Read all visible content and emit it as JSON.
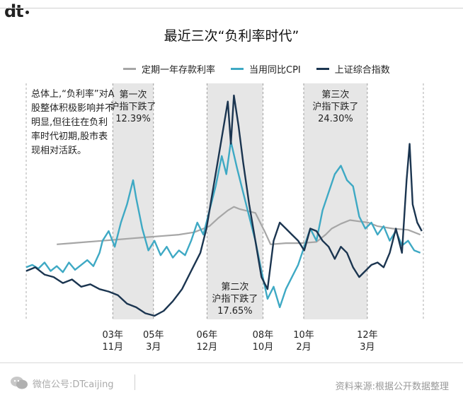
{
  "header": {
    "logo": "dt"
  },
  "title": "最近三次“负利率时代”",
  "note": "总体上,“负利率”对A股整体积极影响并不明显,但往往在负利率时代初期,股市表现相对活跃。",
  "footer": {
    "wechat": "微信公号:DTcaijing",
    "source": "资料来源:根据公开数据整理"
  },
  "colors": {
    "deposit": "#a6a6a6",
    "cpi": "#3ea9c4",
    "shindex": "#1b3550",
    "shade": "#e6e6e6"
  },
  "chart_data": {
    "type": "line",
    "title": "最近三次“负利率时代”",
    "x_range": [
      "2001-01",
      "2013-12"
    ],
    "legend_placement": "top",
    "legend": [
      "定期一年存款利率",
      "当用同比CPI",
      "上证综合指数"
    ],
    "tick_labels": [
      {
        "x": "2003-11",
        "year": "03年",
        "month": "11月"
      },
      {
        "x": "2005-03",
        "year": "05年",
        "month": "3月"
      },
      {
        "x": "2006-12",
        "year": "06年",
        "month": "12月"
      },
      {
        "x": "2008-10",
        "year": "08年",
        "month": "10月"
      },
      {
        "x": "2010-02",
        "year": "10年",
        "month": "2月"
      },
      {
        "x": "2012-03",
        "year": "12年",
        "month": "3月"
      }
    ],
    "periods": [
      {
        "start": "2003-11",
        "end": "2005-03",
        "label": [
          "第一次",
          "沪指下跌了",
          "12.39%"
        ],
        "decline_pct": 12.39
      },
      {
        "start": "2006-12",
        "end": "2008-10",
        "label": [
          "第二次",
          "沪指下跌了",
          "17.65%"
        ],
        "decline_pct": 17.65
      },
      {
        "start": "2010-02",
        "end": "2012-03",
        "label": [
          "第三次",
          "沪指下跌了",
          "24.30%"
        ],
        "decline_pct": 24.3
      }
    ],
    "series": [
      {
        "name": "定期一年存款利率",
        "x": [
          2002.0,
          2002.5,
          2003.0,
          2003.5,
          2004.0,
          2004.5,
          2005.0,
          2005.5,
          2006.0,
          2006.5,
          2007.0,
          2007.3,
          2007.6,
          2007.8,
          2008.0,
          2008.5,
          2008.8,
          2009.0,
          2009.5,
          2010.0,
          2010.5,
          2010.8,
          2011.0,
          2011.3,
          2011.6,
          2011.9,
          2012.2,
          2012.5,
          2013.0,
          2013.5,
          2013.9
        ],
        "y": [
          27,
          28,
          29,
          30,
          31,
          32,
          33,
          34,
          35,
          37,
          42,
          49,
          55,
          58,
          56,
          53,
          38,
          27,
          28,
          28,
          29,
          35,
          40,
          44,
          47,
          46,
          45,
          42,
          40,
          39,
          35
        ]
      },
      {
        "name": "当用同比CPI",
        "x": [
          2001.0,
          2001.2,
          2001.4,
          2001.6,
          2001.8,
          2002.0,
          2002.2,
          2002.4,
          2002.6,
          2002.8,
          2003.0,
          2003.2,
          2003.4,
          2003.5,
          2003.7,
          2003.9,
          2004.1,
          2004.3,
          2004.5,
          2004.6,
          2004.8,
          2005.0,
          2005.2,
          2005.4,
          2005.6,
          2005.8,
          2006.0,
          2006.2,
          2006.4,
          2006.6,
          2006.8,
          2007.0,
          2007.2,
          2007.4,
          2007.55,
          2007.7,
          2007.9,
          2008.1,
          2008.3,
          2008.5,
          2008.7,
          2008.9,
          2009.1,
          2009.3,
          2009.5,
          2009.7,
          2009.9,
          2010.1,
          2010.3,
          2010.5,
          2010.7,
          2010.9,
          2011.1,
          2011.3,
          2011.5,
          2011.7,
          2011.9,
          2012.1,
          2012.3,
          2012.5,
          2012.7,
          2012.9,
          2013.1,
          2013.3,
          2013.5,
          2013.7,
          2013.9
        ],
        "y": [
          8,
          10,
          7,
          12,
          5,
          9,
          4,
          12,
          6,
          10,
          14,
          9,
          20,
          30,
          38,
          25,
          45,
          60,
          80,
          65,
          40,
          22,
          30,
          18,
          25,
          16,
          22,
          18,
          30,
          45,
          35,
          55,
          75,
          100,
          85,
          112,
          90,
          70,
          50,
          30,
          5,
          -18,
          -8,
          -25,
          -10,
          0,
          10,
          25,
          40,
          30,
          55,
          70,
          85,
          92,
          80,
          75,
          50,
          40,
          45,
          35,
          42,
          30,
          38,
          26,
          30,
          22,
          20
        ]
      },
      {
        "name": "上证综合指数",
        "x": [
          2001.0,
          2001.3,
          2001.6,
          2001.9,
          2002.2,
          2002.5,
          2002.8,
          2003.1,
          2003.4,
          2003.7,
          2004.0,
          2004.3,
          2004.6,
          2004.9,
          2005.2,
          2005.5,
          2005.8,
          2006.1,
          2006.4,
          2006.7,
          2006.9,
          2007.1,
          2007.3,
          2007.5,
          2007.6,
          2007.7,
          2007.8,
          2007.95,
          2008.1,
          2008.3,
          2008.5,
          2008.7,
          2008.9,
          2009.1,
          2009.3,
          2009.5,
          2009.7,
          2009.9,
          2010.1,
          2010.3,
          2010.5,
          2010.7,
          2010.9,
          2011.1,
          2011.3,
          2011.5,
          2011.7,
          2011.9,
          2012.1,
          2012.3,
          2012.5,
          2012.7,
          2012.9,
          2013.1,
          2013.3,
          2013.45,
          2013.55,
          2013.65,
          2013.8,
          2013.95
        ],
        "y": [
          5,
          8,
          2,
          0,
          -5,
          -2,
          -8,
          -6,
          -10,
          -12,
          -15,
          -22,
          -25,
          -30,
          -32,
          -28,
          -20,
          -10,
          5,
          20,
          40,
          70,
          100,
          130,
          145,
          110,
          150,
          125,
          95,
          60,
          30,
          0,
          -10,
          30,
          45,
          40,
          35,
          30,
          22,
          40,
          38,
          30,
          25,
          15,
          25,
          20,
          8,
          0,
          5,
          10,
          12,
          8,
          20,
          40,
          20,
          80,
          110,
          60,
          45,
          38
        ]
      }
    ]
  }
}
